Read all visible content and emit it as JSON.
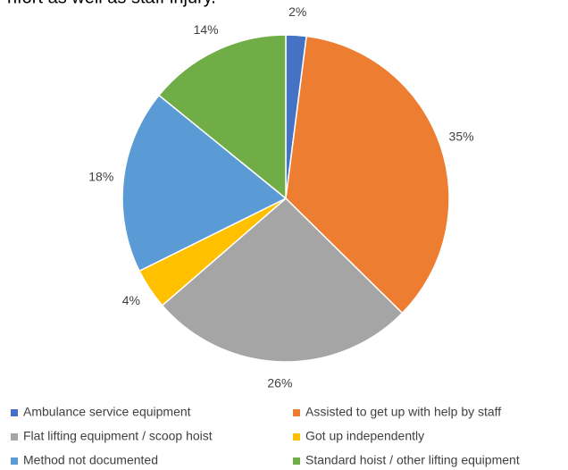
{
  "context_text": "nfort as well as staff injury.",
  "chart_data": {
    "type": "pie",
    "categories": [
      "Ambulance service equipment",
      "Assisted to get up with help by staff",
      "Flat lifting equipment / scoop hoist",
      "Got up independently",
      "Method not documented",
      "Standard hoist / other lifting equipment"
    ],
    "values": [
      2,
      35,
      26,
      4,
      18,
      14
    ],
    "value_labels": [
      "2%",
      "35%",
      "26%",
      "4%",
      "18%",
      "14%"
    ],
    "colors": [
      "#4472c4",
      "#ed7d31",
      "#a5a5a5",
      "#ffc000",
      "#5b9bd5",
      "#70ad47"
    ],
    "legend": "bottom"
  }
}
